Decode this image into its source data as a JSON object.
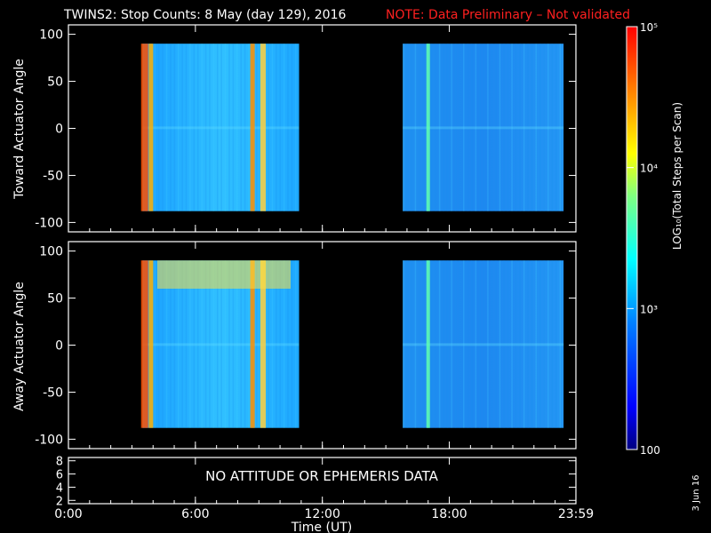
{
  "header": {
    "title": "TWINS2: Stop Counts:  8 May (day 129), 2016",
    "note": "NOTE: Data Preliminary – Not validated",
    "note_color": "#ff2020"
  },
  "footer": {
    "stamp": "3 Jun 16",
    "no_data": "NO ATTITUDE OR EPHEMERIS DATA"
  },
  "chart_data": [
    {
      "type": "heatmap",
      "ylabel": "Toward Actuator Angle",
      "ylim": [
        -110,
        110
      ],
      "yticks": [
        100,
        50,
        0,
        -50,
        -100
      ],
      "xlim": [
        0,
        23.983
      ],
      "data_blocks_hours": [
        [
          3.5,
          10.9
        ],
        [
          15.8,
          23.4
        ]
      ],
      "bright_bands_hours": [
        3.6,
        3.9,
        8.7,
        9.2,
        17.0
      ]
    },
    {
      "type": "heatmap",
      "ylabel": "Away Actuator Angle",
      "ylim": [
        -110,
        110
      ],
      "yticks": [
        100,
        50,
        0,
        -50,
        -100
      ],
      "xlim": [
        0,
        23.983
      ],
      "data_blocks_hours": [
        [
          3.5,
          10.9
        ],
        [
          15.8,
          23.4
        ]
      ],
      "bright_bands_hours": [
        3.6,
        3.9,
        8.7,
        9.2,
        17.0
      ]
    },
    {
      "type": "line",
      "ylim": [
        1.5,
        8.5
      ],
      "yticks": [
        8,
        6,
        4,
        2
      ],
      "annotation": "NO ATTITUDE OR EPHEMERIS DATA"
    }
  ],
  "xaxis": {
    "label": "Time (UT)",
    "ticks": [
      {
        "hour": 0,
        "label": "0:00"
      },
      {
        "hour": 6,
        "label": "6:00"
      },
      {
        "hour": 12,
        "label": "12:00"
      },
      {
        "hour": 18,
        "label": "18:00"
      },
      {
        "hour": 23.983,
        "label": "23:59"
      }
    ]
  },
  "colorbar": {
    "label": "LOG₁₀(Total Steps per Scan)",
    "ticks": [
      {
        "value": 100000,
        "label": "10⁵"
      },
      {
        "value": 10000,
        "label": "10⁴"
      },
      {
        "value": 1000,
        "label": "10³"
      },
      {
        "value": 100,
        "label": "100"
      }
    ],
    "range": [
      100,
      100000
    ],
    "colors": [
      "#000080",
      "#0000ff",
      "#0080ff",
      "#00ffff",
      "#80ff80",
      "#ffff00",
      "#ff8000",
      "#ff0000",
      "#ff0000"
    ]
  }
}
